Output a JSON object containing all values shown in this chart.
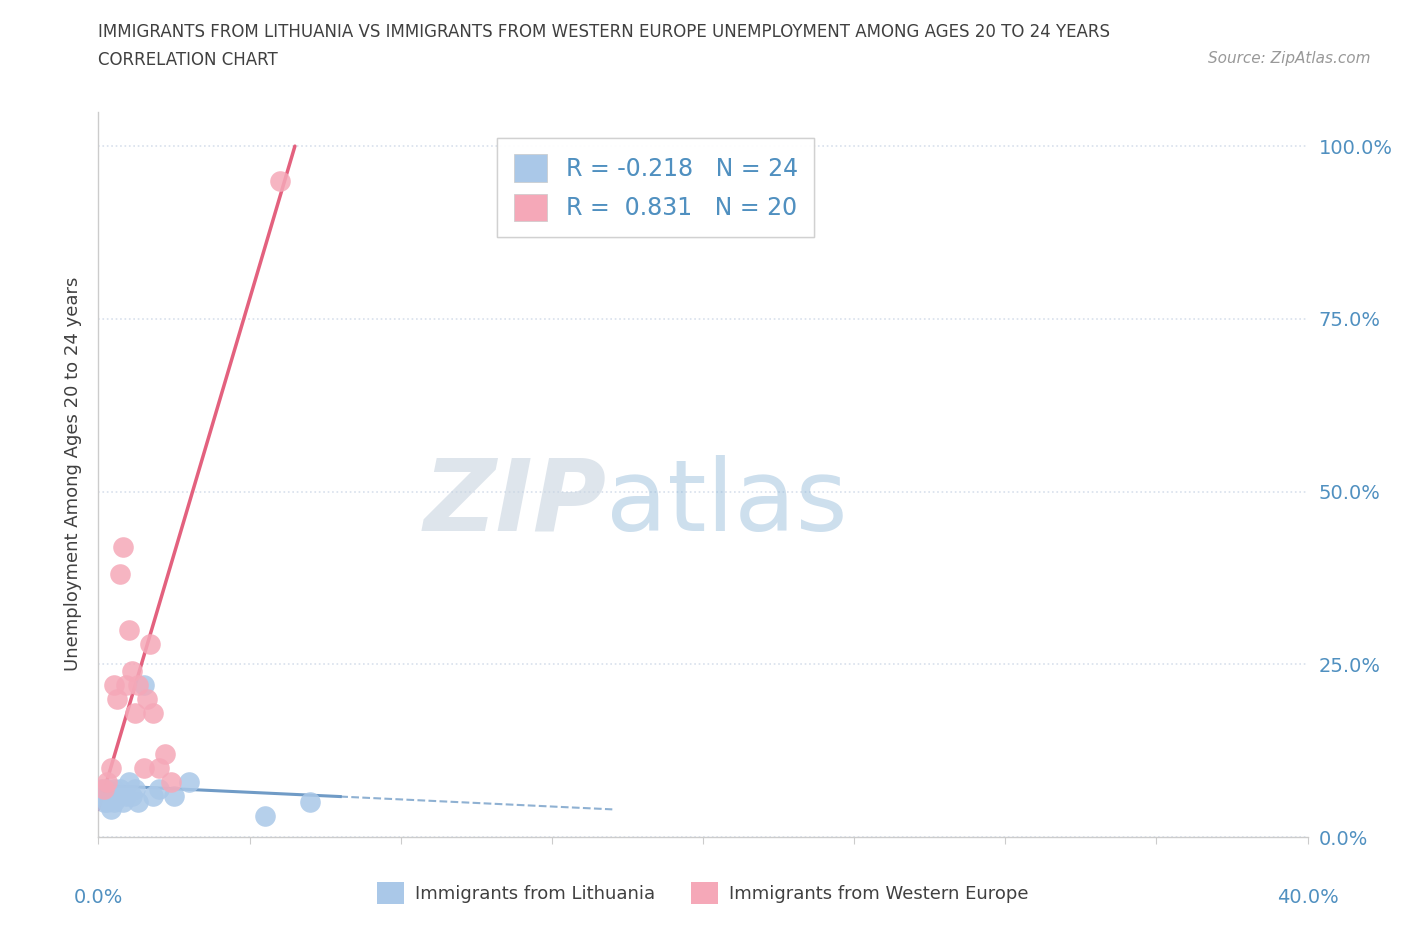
{
  "title_line1": "IMMIGRANTS FROM LITHUANIA VS IMMIGRANTS FROM WESTERN EUROPE UNEMPLOYMENT AMONG AGES 20 TO 24 YEARS",
  "title_line2": "CORRELATION CHART",
  "source_text": "Source: ZipAtlas.com",
  "ylabel_label": "Unemployment Among Ages 20 to 24 years",
  "watermark_zip": "ZIP",
  "watermark_atlas": "atlas",
  "r_lithuania": -0.218,
  "n_lithuania": 24,
  "r_western": 0.831,
  "n_western": 20,
  "lithuania_color": "#aac8e8",
  "western_color": "#f5a8b8",
  "trendline_lithuania_color": "#6090c0",
  "trendline_western_color": "#e05070",
  "gridline_color": "#d8e0ec",
  "xlim": [
    0.0,
    0.4
  ],
  "ylim": [
    0.0,
    1.05
  ],
  "bg_color": "#ffffff",
  "title_color": "#404040",
  "tick_label_color": "#5090c0",
  "legend_label_color": "#5090c0",
  "source_color": "#999999",
  "ylabel_color": "#404040",
  "bottom_legend_color": "#404040",
  "lithuania_x": [
    0.001,
    0.002,
    0.002,
    0.003,
    0.003,
    0.004,
    0.004,
    0.005,
    0.005,
    0.006,
    0.007,
    0.008,
    0.009,
    0.01,
    0.011,
    0.012,
    0.013,
    0.015,
    0.018,
    0.02,
    0.025,
    0.03,
    0.055,
    0.07
  ],
  "lithuania_y": [
    0.07,
    0.05,
    0.06,
    0.07,
    0.05,
    0.06,
    0.04,
    0.07,
    0.05,
    0.06,
    0.07,
    0.05,
    0.06,
    0.08,
    0.06,
    0.07,
    0.05,
    0.22,
    0.06,
    0.07,
    0.06,
    0.08,
    0.03,
    0.05
  ],
  "western_x": [
    0.002,
    0.003,
    0.004,
    0.005,
    0.006,
    0.007,
    0.008,
    0.009,
    0.01,
    0.011,
    0.012,
    0.013,
    0.015,
    0.016,
    0.017,
    0.018,
    0.02,
    0.022,
    0.024,
    0.06
  ],
  "western_y": [
    0.07,
    0.08,
    0.1,
    0.22,
    0.2,
    0.38,
    0.42,
    0.22,
    0.3,
    0.24,
    0.18,
    0.22,
    0.1,
    0.2,
    0.28,
    0.18,
    0.1,
    0.12,
    0.08,
    0.95
  ],
  "trendline_western_x0": 0.0,
  "trendline_western_y0": 0.04,
  "trendline_western_x1": 0.065,
  "trendline_western_y1": 1.0,
  "trendline_lith_x0": 0.0,
  "trendline_lith_y0": 0.075,
  "trendline_lith_x1": 0.17,
  "trendline_lith_y1": 0.04
}
